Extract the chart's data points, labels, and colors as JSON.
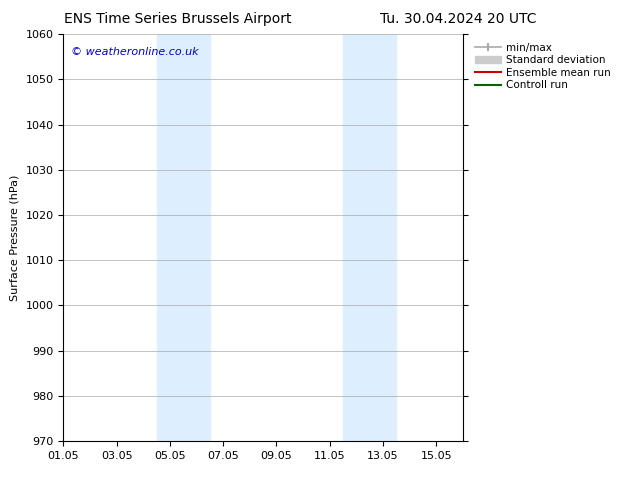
{
  "title_left": "ENS Time Series Brussels Airport",
  "title_right": "Tu. 30.04.2024 20 UTC",
  "ylabel": "Surface Pressure (hPa)",
  "xlim": [
    0,
    15
  ],
  "ylim": [
    970,
    1060
  ],
  "yticks": [
    970,
    980,
    990,
    1000,
    1010,
    1020,
    1030,
    1040,
    1050,
    1060
  ],
  "xtick_labels": [
    "01.05",
    "03.05",
    "05.05",
    "07.05",
    "09.05",
    "11.05",
    "13.05",
    "15.05"
  ],
  "xtick_positions": [
    0,
    2,
    4,
    6,
    8,
    10,
    12,
    14
  ],
  "shaded_bands": [
    {
      "xmin": 3.5,
      "xmax": 5.5
    },
    {
      "xmin": 10.5,
      "xmax": 12.5
    }
  ],
  "shaded_color": "#ddeeff",
  "background_color": "#ffffff",
  "watermark_text": "© weatheronline.co.uk",
  "watermark_color": "#0000cc",
  "grid_color": "#aaaaaa",
  "title_fontsize": 10,
  "axis_fontsize": 8,
  "watermark_fontsize": 8,
  "legend_fontsize": 7.5,
  "minmax_color": "#aaaaaa",
  "std_color": "#cccccc",
  "ensemble_color": "#cc0000",
  "control_color": "#006600"
}
